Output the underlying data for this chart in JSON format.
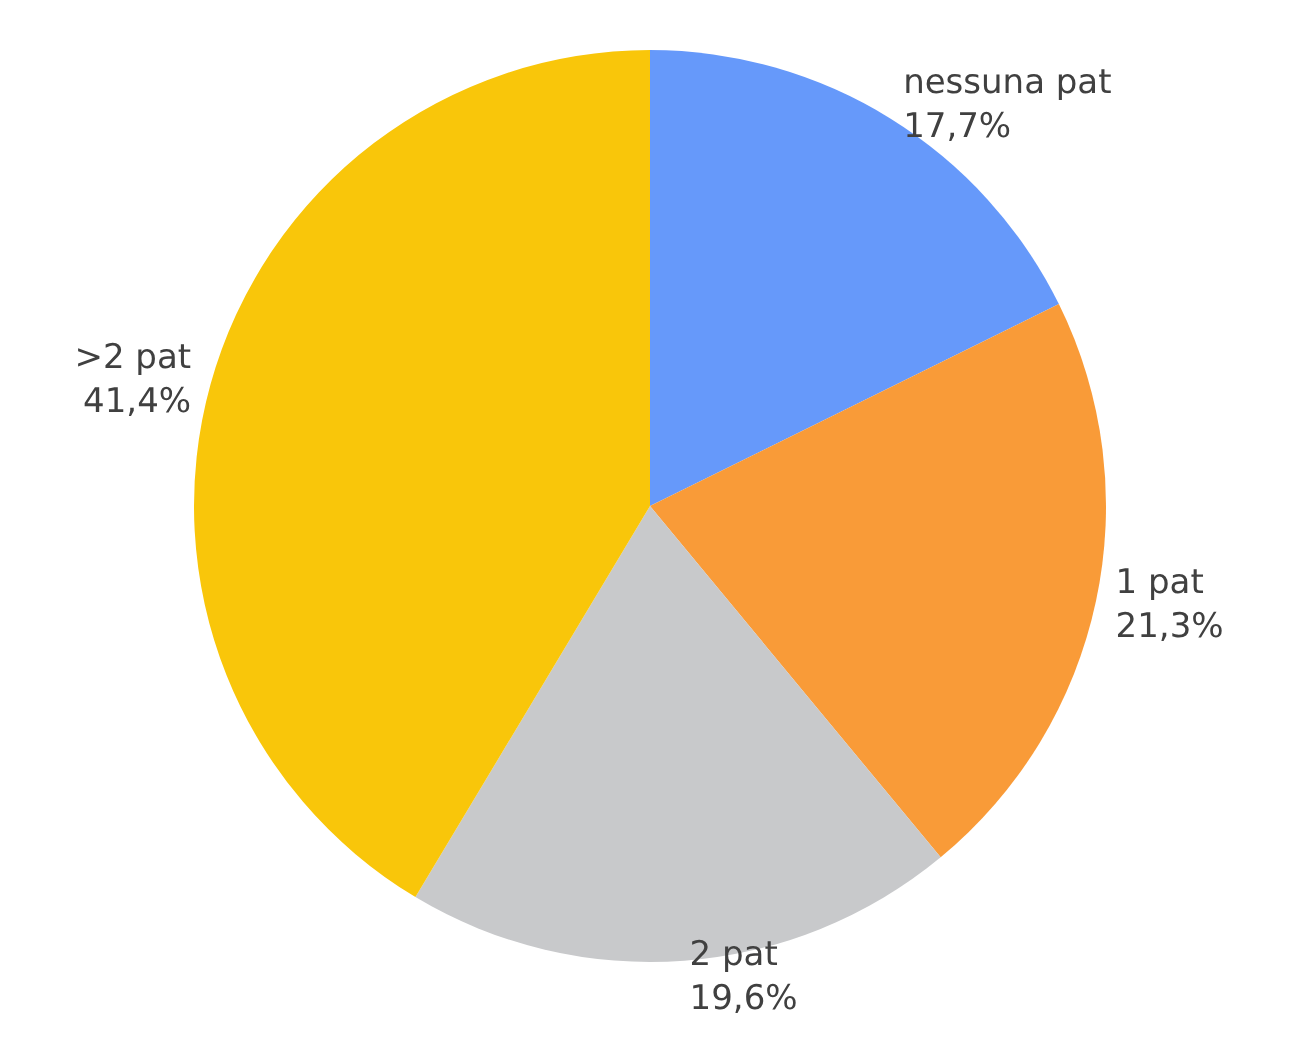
{
  "chart_data": {
    "type": "pie",
    "categories": [
      "nessuna pat",
      "1 pat",
      "2 pat",
      ">2 pat"
    ],
    "values": [
      17.7,
      21.3,
      19.6,
      41.4
    ],
    "colors": [
      "#6699fa",
      "#f99b38",
      "#c8c9cb",
      "#f9c60a"
    ],
    "value_labels": [
      "17,7%",
      "21,3%",
      "19,6%",
      "41,4%"
    ],
    "legend": false
  }
}
